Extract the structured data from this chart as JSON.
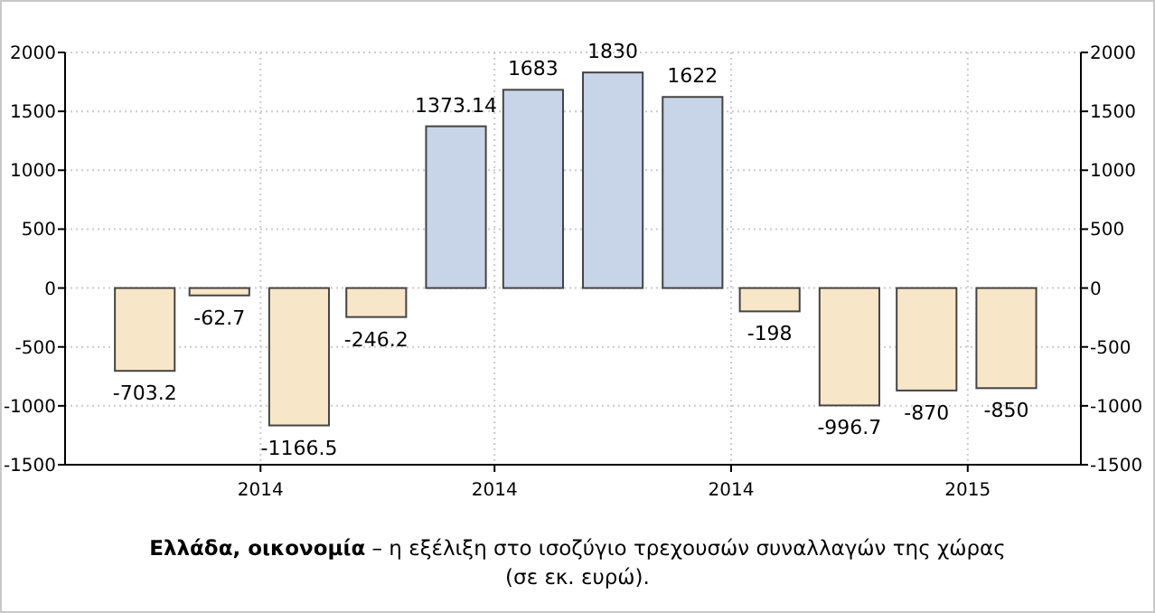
{
  "chart_data": {
    "type": "bar",
    "x": [
      "2014-02-15",
      "2014-03-16",
      "2014-04-16",
      "2014-05-16",
      "2014-06-16",
      "2014-07-16",
      "2014-08-16",
      "2014-09-16",
      "2014-10-16",
      "2014-11-16",
      "2014-12-16",
      "2015-01-16"
    ],
    "values": [
      -703.2,
      -62.7,
      -1166.5,
      -246.2,
      1373.14,
      1683,
      1830,
      1622,
      -198,
      -996.7,
      -870,
      -850
    ],
    "colors": [
      "#f8e6c8",
      "#f8e6c8",
      "#f8e6c8",
      "#f8e6c8",
      "#c8d5e8",
      "#c8d5e8",
      "#c8d5e8",
      "#c8d5e8",
      "#f8e6c8",
      "#f8e6c8",
      "#f8e6c8",
      "#f8e6c8"
    ],
    "data_labels": true,
    "xlim": [
      "2014-01-15",
      "2015-02-14"
    ],
    "xticks": [
      {
        "value": "2014-04-01",
        "label": "2014"
      },
      {
        "value": "2014-07-01",
        "label": "2014"
      },
      {
        "value": "2014-10-01",
        "label": "2014"
      },
      {
        "value": "2015-01-01",
        "label": "2015"
      }
    ],
    "ylim": [
      -1500,
      2000
    ],
    "yticks": [
      -1500,
      -1000,
      -500,
      0,
      500,
      1000,
      1500,
      2000
    ],
    "y2lim": [
      -1500,
      2000
    ],
    "y2ticks": [
      -1500,
      -1000,
      -500,
      0,
      500,
      1000,
      1500,
      2000
    ],
    "grid": true,
    "annotations": [
      "Ελλάδα, οικονομία",
      "– η εξέλιξη στο ισοζύγιο τρεχουσών συναλλαγών της χώρας (σε εκ. ευρώ)."
    ]
  }
}
